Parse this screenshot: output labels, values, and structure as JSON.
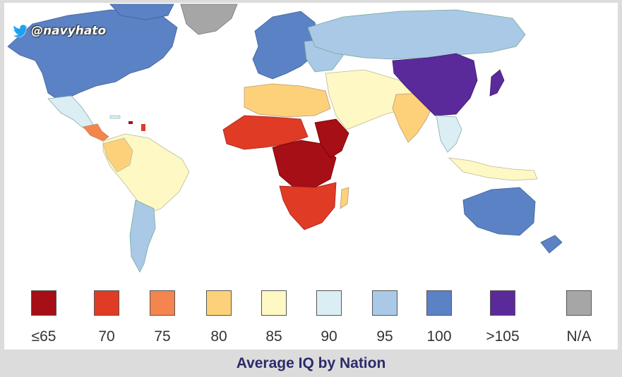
{
  "watermark": {
    "handle": "@navyhato",
    "icon": "twitter-bird-icon"
  },
  "caption": "Average IQ by Nation",
  "legend": [
    {
      "label": "≤65",
      "color": "#a50f15"
    },
    {
      "label": "70",
      "color": "#e03b24"
    },
    {
      "label": "75",
      "color": "#f4854f"
    },
    {
      "label": "80",
      "color": "#fcd17a"
    },
    {
      "label": "85",
      "color": "#fdf8c4"
    },
    {
      "label": "90",
      "color": "#dbeef3"
    },
    {
      "label": "95",
      "color": "#a9c9e6"
    },
    {
      "label": "100",
      "color": "#5b82c5"
    },
    {
      "label": ">105",
      "color": "#5a2a9b"
    },
    {
      "label": "N/A",
      "color": "#a6a6a6"
    }
  ]
}
